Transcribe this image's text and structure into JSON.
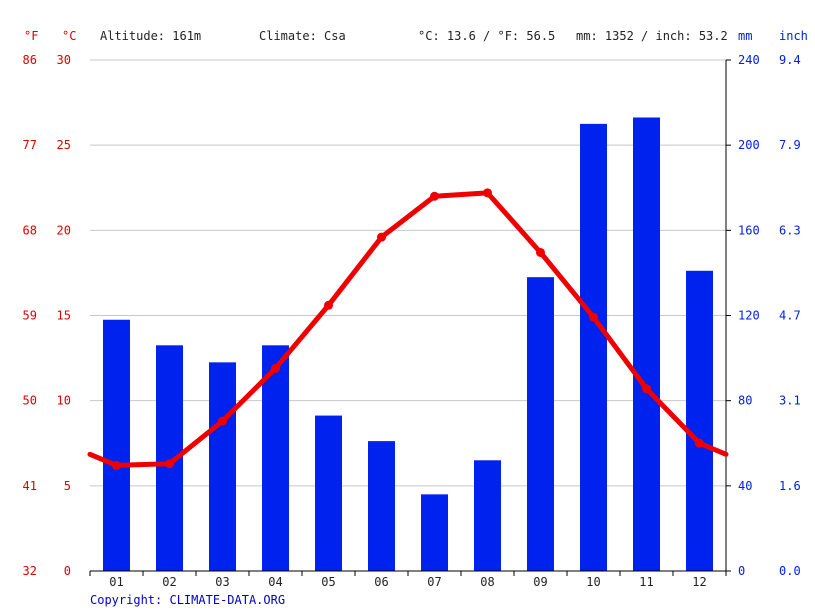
{
  "header": {
    "altitude": "Altitude: 161m",
    "climate": "Climate: Csa",
    "temp_avg": "°C: 13.6 / °F: 56.5",
    "precip_total": "mm: 1352 / inch: 53.2"
  },
  "units": {
    "f": "°F",
    "c": "°C",
    "mm": "mm",
    "inch": "inch"
  },
  "copyright": "Copyright: CLIMATE-DATA.ORG",
  "colors": {
    "temperature": "#ee0000",
    "precipitation": "#0022ee",
    "grid": "#c8c8c8",
    "axis_text_red": "#dd0000",
    "axis_text_blue": "#0022dd"
  },
  "chart_data": {
    "type": "bar",
    "categories": [
      "01",
      "02",
      "03",
      "04",
      "05",
      "06",
      "07",
      "08",
      "09",
      "10",
      "11",
      "12"
    ],
    "series": [
      {
        "type": "bar",
        "values": [
          118,
          106,
          98,
          106,
          73,
          61,
          36,
          52,
          138,
          210,
          213,
          141
        ]
      },
      {
        "type": "line",
        "values": [
          6.2,
          6.3,
          8.8,
          11.9,
          15.6,
          19.6,
          22.0,
          22.2,
          18.7,
          14.9,
          10.7,
          7.5
        ]
      }
    ],
    "left_axis_c": {
      "ticks": [
        0,
        5,
        10,
        15,
        20,
        25,
        30
      ],
      "ylim": [
        0,
        30
      ]
    },
    "left_axis_f": {
      "ticks": [
        32,
        41,
        50,
        59,
        68,
        77,
        86
      ]
    },
    "right_axis_mm": {
      "ticks": [
        0,
        40,
        80,
        120,
        160,
        200,
        240
      ],
      "ylim": [
        0,
        240
      ]
    },
    "right_axis_inch": {
      "ticks": [
        "0.0",
        "1.6",
        "3.1",
        "4.7",
        "6.3",
        "7.9",
        "9.4"
      ]
    },
    "grid": true
  }
}
